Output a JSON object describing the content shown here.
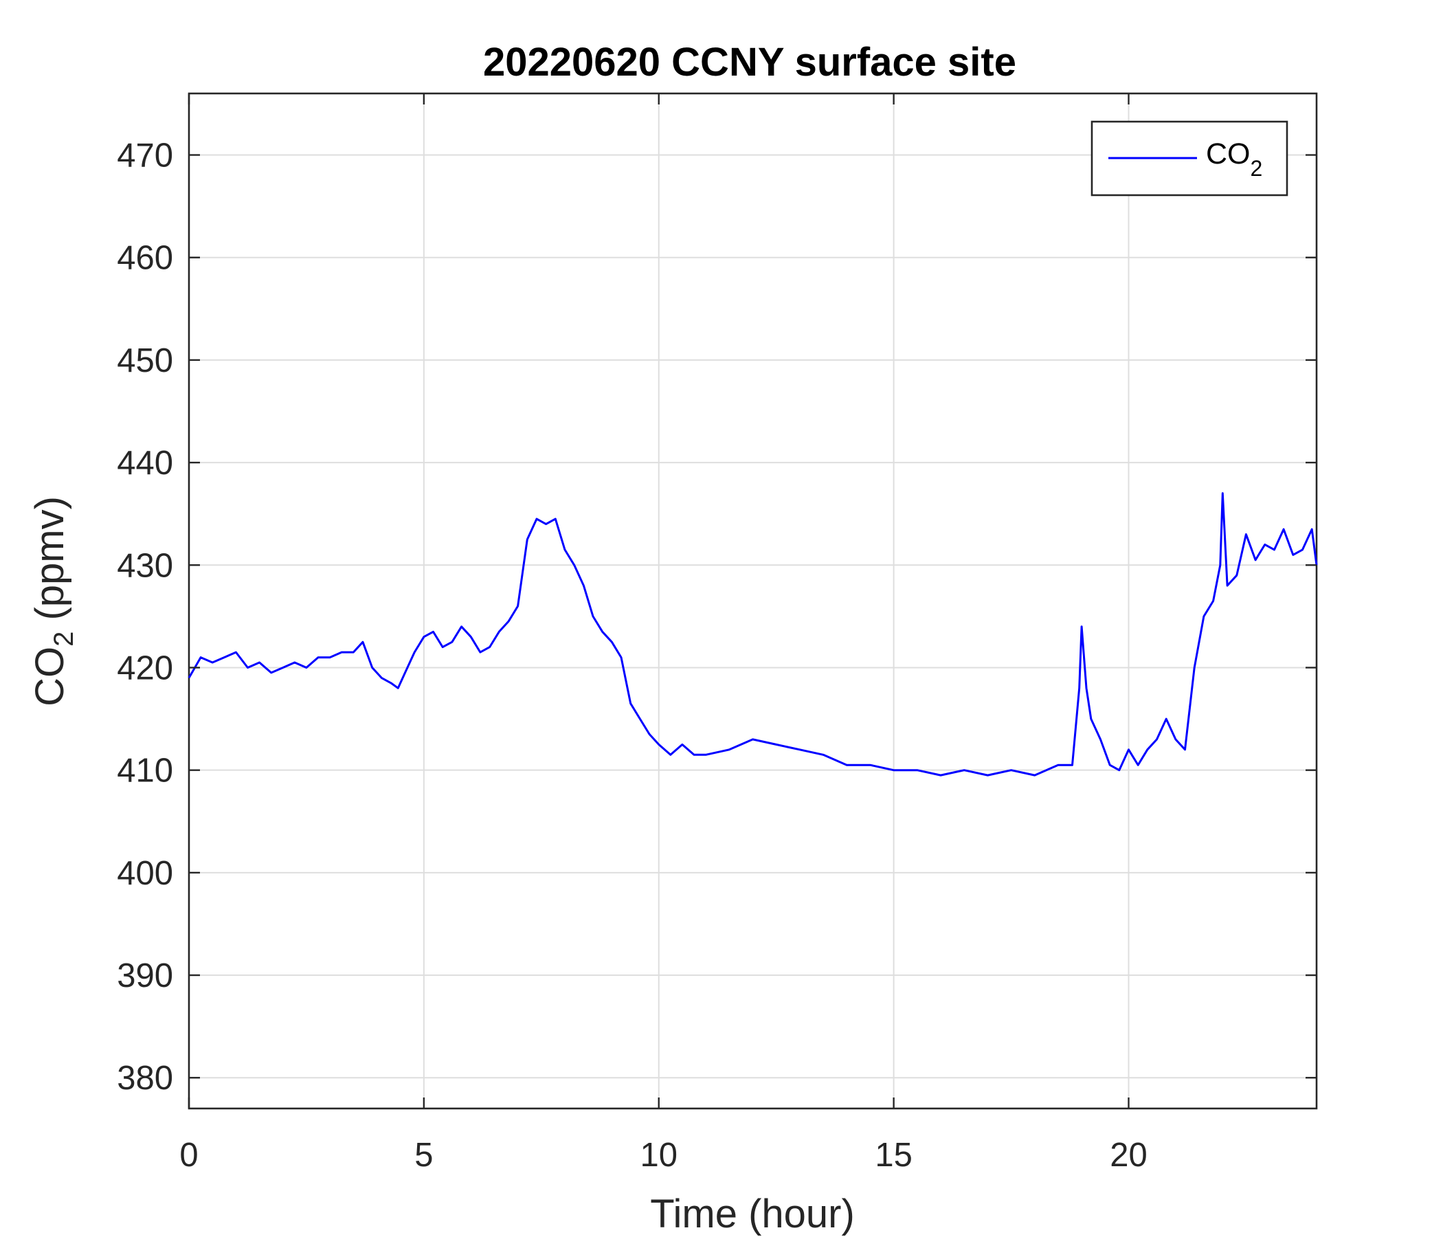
{
  "chart_data": {
    "type": "line",
    "title": "20220620 CCNY surface site",
    "xlabel": "Time (hour)",
    "ylabel": {
      "main": "CO",
      "sub": "2",
      "unit": " (ppmv)"
    },
    "xlim": [
      0,
      24
    ],
    "ylim": [
      377,
      476
    ],
    "xticks": [
      0,
      5,
      10,
      15,
      20
    ],
    "yticks": [
      380,
      390,
      400,
      410,
      420,
      430,
      440,
      450,
      460,
      470
    ],
    "grid": true,
    "legend": {
      "position": "top-right",
      "entries": [
        {
          "main": "CO",
          "sub": "2"
        }
      ]
    },
    "series": [
      {
        "name": "CO2",
        "color": "#0000ff",
        "x": [
          0,
          0.25,
          0.5,
          0.75,
          1.0,
          1.25,
          1.5,
          1.75,
          2.0,
          2.25,
          2.5,
          2.75,
          3.0,
          3.25,
          3.5,
          3.7,
          3.9,
          4.1,
          4.3,
          4.45,
          4.6,
          4.8,
          5.0,
          5.2,
          5.4,
          5.6,
          5.8,
          6.0,
          6.2,
          6.4,
          6.6,
          6.8,
          7.0,
          7.2,
          7.4,
          7.6,
          7.8,
          8.0,
          8.2,
          8.4,
          8.6,
          8.8,
          9.0,
          9.2,
          9.4,
          9.6,
          9.8,
          10.0,
          10.25,
          10.5,
          10.75,
          11.0,
          11.5,
          12.0,
          12.5,
          13.0,
          13.5,
          14.0,
          14.5,
          15.0,
          15.5,
          16.0,
          16.5,
          17.0,
          17.5,
          18.0,
          18.5,
          18.8,
          18.95,
          19.0,
          19.1,
          19.2,
          19.4,
          19.6,
          19.8,
          20.0,
          20.2,
          20.4,
          20.6,
          20.8,
          21.0,
          21.2,
          21.4,
          21.6,
          21.8,
          21.95,
          22.0,
          22.1,
          22.3,
          22.5,
          22.7,
          22.9,
          23.1,
          23.3,
          23.5,
          23.7,
          23.9,
          24.0
        ],
        "y": [
          419,
          421,
          420.5,
          421,
          421.5,
          420,
          420.5,
          419.5,
          420,
          420.5,
          420,
          421,
          421,
          421.5,
          421.5,
          422.5,
          420,
          419,
          418.5,
          418,
          419.5,
          421.5,
          423,
          423.5,
          422,
          422.5,
          424,
          423,
          421.5,
          422,
          423.5,
          424.5,
          426,
          432.5,
          434.5,
          434,
          434.5,
          431.5,
          430,
          428,
          425,
          423.5,
          422.5,
          421,
          416.5,
          415,
          413.5,
          412.5,
          411.5,
          412.5,
          411.5,
          411.5,
          412,
          413,
          412.5,
          412,
          411.5,
          410.5,
          410.5,
          410,
          410,
          409.5,
          410,
          409.5,
          410,
          409.5,
          410.5,
          410.5,
          418,
          424,
          418,
          415,
          413,
          410.5,
          410,
          412,
          410.5,
          412,
          413,
          415,
          413,
          412,
          420,
          425,
          426.5,
          430,
          437,
          428,
          429,
          433,
          430.5,
          432,
          431.5,
          433.5,
          431,
          431.5,
          433.5,
          430
        ]
      }
    ]
  }
}
